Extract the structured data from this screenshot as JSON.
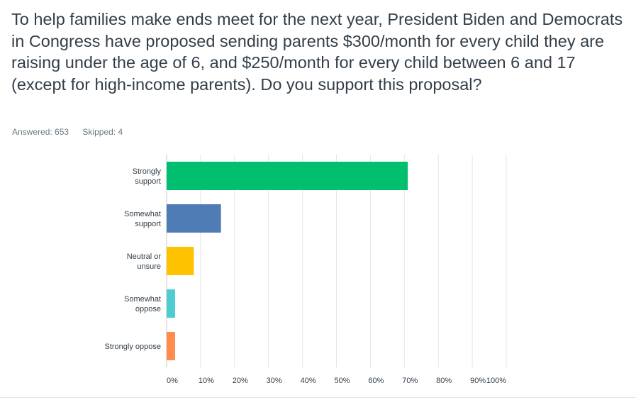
{
  "question": {
    "text": "To help families make ends meet for the next year, President Biden and Democrats in Congress have proposed sending parents $300/month for every child they are raising under the age of 6, and $250/month for every child between 6 and 17 (except for high-income parents). Do you support this proposal?"
  },
  "stats": {
    "answered": "Answered: 653",
    "skipped": "Skipped: 4"
  },
  "chart_data": {
    "type": "bar",
    "orientation": "horizontal",
    "categories": [
      [
        "Strongly",
        "support"
      ],
      [
        "Somewhat",
        "support"
      ],
      [
        "Neutral or",
        "unsure"
      ],
      [
        "Somewhat",
        "oppose"
      ],
      [
        "Strongly oppose"
      ]
    ],
    "values": [
      71,
      16,
      8,
      2.5,
      2.5
    ],
    "colors": [
      "#00bf6f",
      "#507cb6",
      "#ffc200",
      "#4ecdd0",
      "#ff8b4f"
    ],
    "xlim": [
      0,
      100
    ],
    "xticks": [
      "0%",
      "10%",
      "20%",
      "30%",
      "40%",
      "50%",
      "60%",
      "70%",
      "80%",
      "90%",
      "100%"
    ],
    "grid": true,
    "grid_color": "#e6e6e6"
  }
}
